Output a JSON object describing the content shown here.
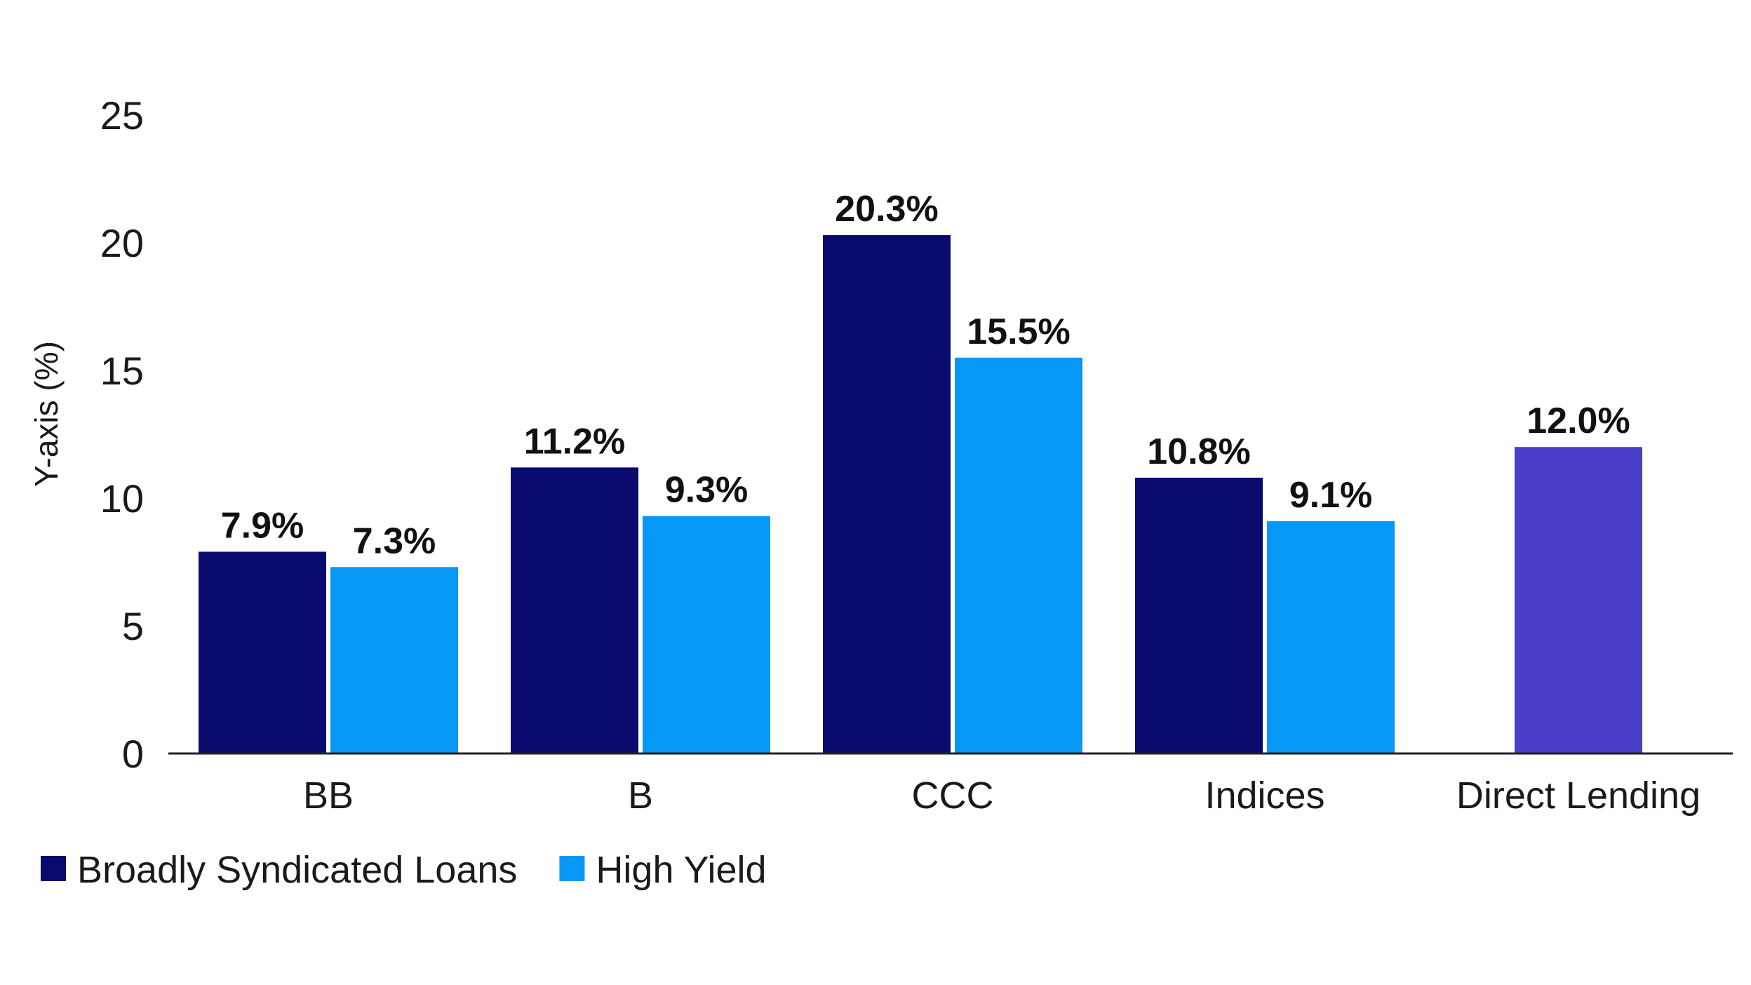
{
  "chart_data": {
    "type": "bar",
    "title": "",
    "xlabel": "",
    "ylabel": "Y-axis (%)",
    "ylim": [
      0,
      25
    ],
    "yticks": [
      "0",
      "5",
      "10",
      "15",
      "20",
      "25"
    ],
    "categories": [
      "BB",
      "B",
      "CCC",
      "Indices",
      "Direct Lending"
    ],
    "series": [
      {
        "name": "Broadly Syndicated Loans",
        "color": "#0a0a6e",
        "values": [
          7.9,
          11.2,
          20.3,
          10.8,
          null
        ],
        "labels": [
          "7.9%",
          "11.2%",
          "20.3%",
          "10.8%",
          null
        ]
      },
      {
        "name": "High Yield",
        "color": "#0797f5",
        "values": [
          7.3,
          9.3,
          15.5,
          9.1,
          null
        ],
        "labels": [
          "7.3%",
          "9.3%",
          "15.5%",
          "9.1%",
          null
        ]
      },
      {
        "name": "Direct Lending",
        "color": "#4a3ec8",
        "values": [
          null,
          null,
          null,
          null,
          12.0
        ],
        "labels": [
          null,
          null,
          null,
          null,
          "12.0%"
        ],
        "in_legend": false
      }
    ],
    "legend": {
      "placement": "bottom-left",
      "items": [
        {
          "label": "Broadly Syndicated Loans",
          "color": "#0a0a6e"
        },
        {
          "label": "High Yield",
          "color": "#0797f5"
        }
      ]
    },
    "grid": false
  }
}
